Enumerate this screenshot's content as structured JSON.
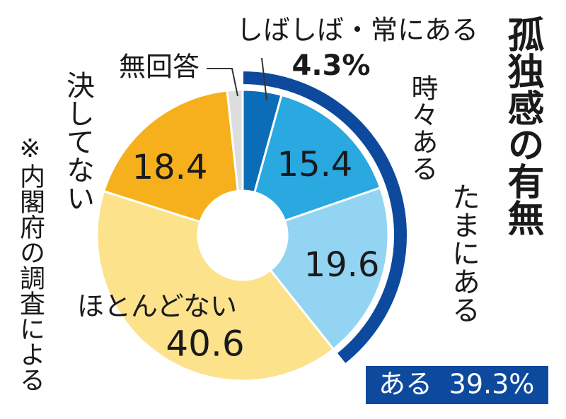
{
  "chart_data": {
    "type": "donut",
    "title": "孤独感の有無",
    "note": "※内閣府の調査による",
    "categories": [
      "しばしば・常にある",
      "時々ある",
      "たまにある",
      "ほとんどない",
      "決してない",
      "無回答"
    ],
    "values": [
      4.3,
      15.4,
      19.6,
      40.6,
      18.4,
      1.7
    ],
    "value_labels": [
      "4.3%",
      "15.4",
      "19.6",
      "40.6",
      "18.4",
      null
    ],
    "colors": [
      "#0b6db7",
      "#2aa8e0",
      "#93d4f3",
      "#fde28c",
      "#f5b01c",
      "#dddddd"
    ],
    "summary": {
      "label": "ある",
      "value": 39.3,
      "value_label": "39.3%",
      "color": "#0d4a9e"
    }
  }
}
